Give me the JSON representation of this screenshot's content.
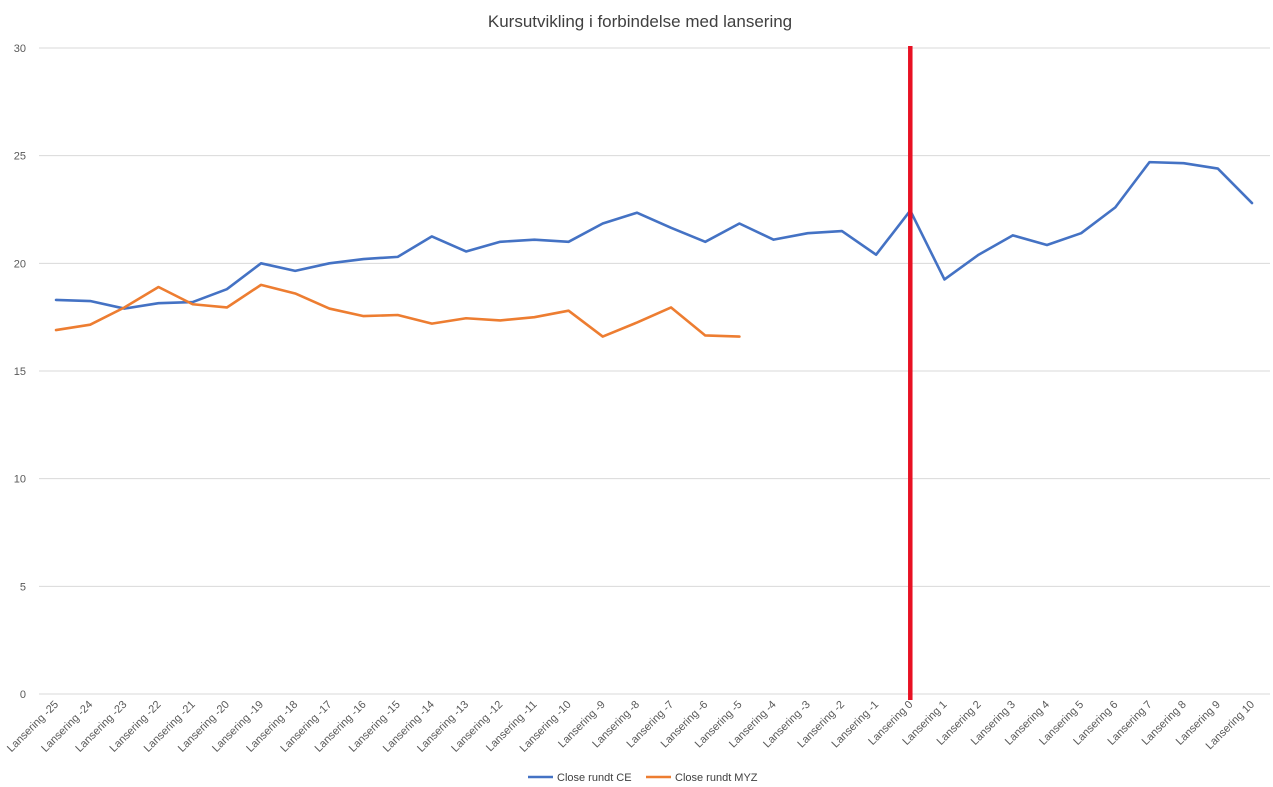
{
  "chart_data": {
    "type": "line",
    "title": "Kursutvikling i forbindelse med lansering",
    "xlabel": "",
    "ylabel": "",
    "ylim": [
      0,
      30
    ],
    "yticks": [
      0,
      5,
      10,
      15,
      20,
      25,
      30
    ],
    "grid": true,
    "legend_position": "bottom",
    "categories": [
      "Lansering -25",
      "Lansering -24",
      "Lansering -23",
      "Lansering -22",
      "Lansering -21",
      "Lansering -20",
      "Lansering -19",
      "Lansering -18",
      "Lansering -17",
      "Lansering -16",
      "Lansering -15",
      "Lansering -14",
      "Lansering -13",
      "Lansering -12",
      "Lansering -11",
      "Lansering -10",
      "Lansering -9",
      "Lansering -8",
      "Lansering -7",
      "Lansering -6",
      "Lansering -5",
      "Lansering -4",
      "Lansering -3",
      "Lansering -2",
      "Lansering -1",
      "Lansering 0",
      "Lansering 1",
      "Lansering 2",
      "Lansering 3",
      "Lansering 4",
      "Lansering 5",
      "Lansering 6",
      "Lansering 7",
      "Lansering 8",
      "Lansering 9",
      "Lansering 10"
    ],
    "series": [
      {
        "name": "Close rundt CE",
        "color": "#4472C4",
        "values": [
          18.3,
          18.25,
          17.9,
          18.15,
          18.2,
          18.8,
          20.0,
          19.65,
          20.0,
          20.2,
          20.3,
          21.25,
          20.55,
          21.0,
          21.1,
          21.0,
          21.85,
          22.35,
          21.65,
          21.0,
          21.85,
          21.1,
          21.4,
          21.5,
          20.4,
          22.45,
          19.25,
          20.4,
          21.3,
          20.85,
          21.4,
          22.6,
          24.7,
          24.65,
          24.4,
          22.8
        ]
      },
      {
        "name": "Close rundt MYZ",
        "color": "#ED7D31",
        "values": [
          16.9,
          17.15,
          17.95,
          18.9,
          18.1,
          17.95,
          19.0,
          18.6,
          17.9,
          17.55,
          17.6,
          17.2,
          17.45,
          17.35,
          17.5,
          17.8,
          16.6,
          17.25,
          17.95,
          16.65,
          16.6,
          null,
          null,
          null,
          null,
          null,
          null,
          null,
          null,
          null,
          null,
          null,
          null,
          null,
          null,
          null
        ]
      }
    ],
    "annotations": [
      {
        "type": "vertical_line",
        "at_category": "Lansering 0",
        "color": "#E81123"
      }
    ]
  }
}
